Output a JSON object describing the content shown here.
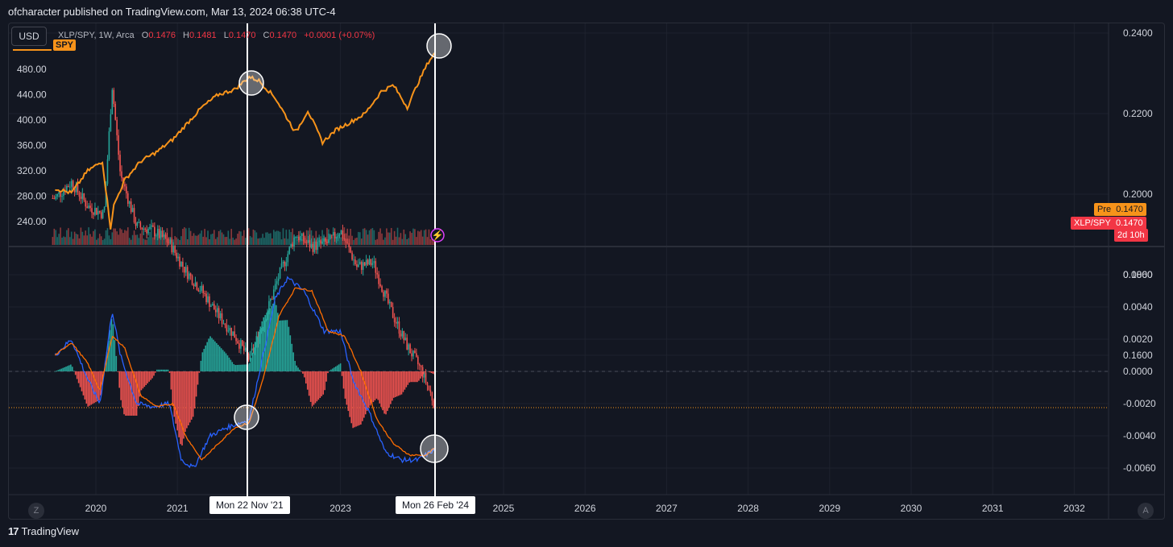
{
  "header": {
    "published": "ofcharacter published on TradingView.com, Mar 13, 2024 06:38 UTC-4"
  },
  "toolbar": {
    "currency": "USD"
  },
  "legend": {
    "symbol": "XLP/SPY, 1W, Arca",
    "o_label": "O",
    "o": "0.1476",
    "h_label": "H",
    "h": "0.1481",
    "l_label": "L",
    "l": "0.1470",
    "c_label": "C",
    "c": "0.1470",
    "change": "+0.0001 (+0.07%)",
    "overlay": "SPY"
  },
  "tags": {
    "pre_label": "Pre",
    "pre_value": "0.1470",
    "sym_label": "XLP/SPY",
    "sym_value": "0.1470",
    "countdown": "2d 10h"
  },
  "crosshair_dates": [
    "Mon 22 Nov '21",
    "Mon 26 Feb '24"
  ],
  "footer": {
    "brand": "TradingView",
    "logo": "17"
  },
  "buttons": {
    "z": "Z",
    "a": "A"
  },
  "colors": {
    "spy": "#f7931a",
    "up": "#26a69a",
    "down": "#ef5350",
    "macd": "#2962ff",
    "signal": "#ff6d00",
    "bg": "#131722"
  },
  "chart_data": [
    {
      "type": "line",
      "title": "XLP/SPY, 1W, Arca",
      "right_axis_ticks": [
        "0.2400",
        "0.2200",
        "0.2000",
        "0.1800",
        "0.1600"
      ],
      "left_axis_ticks": [
        "480.00",
        "440.00",
        "400.00",
        "360.00",
        "320.00",
        "280.00",
        "240.00"
      ],
      "x_ticks": [
        "2020",
        "2021",
        "2023",
        "2025",
        "2026",
        "2027",
        "2028",
        "2029",
        "2030",
        "2031",
        "2032"
      ],
      "series": [
        {
          "name": "SPY",
          "x": [
            2019.5,
            2019.7,
            2019.9,
            2020.08,
            2020.18,
            2020.22,
            2020.35,
            2020.55,
            2020.75,
            2020.95,
            2021.1,
            2021.3,
            2021.5,
            2021.7,
            2021.88,
            2022.0,
            2022.2,
            2022.45,
            2022.6,
            2022.78,
            2022.95,
            2023.1,
            2023.3,
            2023.5,
            2023.65,
            2023.82,
            2023.95,
            2024.08,
            2024.17
          ],
          "values": [
            292,
            285,
            320,
            335,
            230,
            265,
            305,
            335,
            350,
            370,
            392,
            420,
            440,
            448,
            468,
            462,
            435,
            380,
            415,
            365,
            385,
            395,
            410,
            445,
            455,
            420,
            458,
            492,
            508
          ]
        },
        {
          "name": "XLP/SPY",
          "x": [
            2019.5,
            2019.7,
            2019.9,
            2020.1,
            2020.2,
            2020.3,
            2020.5,
            2020.7,
            2020.9,
            2021.1,
            2021.3,
            2021.5,
            2021.7,
            2021.88,
            2022.05,
            2022.25,
            2022.45,
            2022.65,
            2022.85,
            2023.0,
            2023.2,
            2023.4,
            2023.6,
            2023.8,
            2024.0,
            2024.17
          ],
          "values": [
            0.199,
            0.203,
            0.197,
            0.195,
            0.227,
            0.205,
            0.192,
            0.191,
            0.188,
            0.181,
            0.176,
            0.17,
            0.165,
            0.159,
            0.168,
            0.18,
            0.19,
            0.187,
            0.188,
            0.191,
            0.182,
            0.183,
            0.172,
            0.163,
            0.156,
            0.147
          ]
        }
      ]
    },
    {
      "type": "line",
      "title": "MACD",
      "right_axis_ticks": [
        "0.0060",
        "0.0040",
        "0.0020",
        "0.0000",
        "-0.0020",
        "-0.0040",
        "-0.0060"
      ],
      "ylim": [
        -0.0066,
        0.006
      ],
      "series": [
        {
          "name": "MACD",
          "x": [
            2019.5,
            2019.7,
            2019.9,
            2020.05,
            2020.2,
            2020.3,
            2020.5,
            2020.7,
            2020.9,
            2021.05,
            2021.2,
            2021.4,
            2021.6,
            2021.88,
            2022.05,
            2022.2,
            2022.35,
            2022.55,
            2022.8,
            2023.0,
            2023.15,
            2023.35,
            2023.55,
            2023.75,
            2023.95,
            2024.17
          ],
          "values": [
            0.001,
            0.002,
            -0.0005,
            -0.002,
            0.0038,
            0.001,
            -0.002,
            -0.0022,
            -0.002,
            -0.0055,
            -0.006,
            -0.004,
            -0.0035,
            -0.003,
            0.001,
            0.0045,
            0.0058,
            0.005,
            0.0025,
            0.0025,
            -0.0005,
            -0.0025,
            -0.005,
            -0.0055,
            -0.0055,
            -0.0048
          ]
        },
        {
          "name": "Signal",
          "x": [
            2019.5,
            2019.7,
            2019.9,
            2020.05,
            2020.2,
            2020.35,
            2020.55,
            2020.75,
            2020.95,
            2021.1,
            2021.3,
            2021.5,
            2021.7,
            2021.88,
            2022.05,
            2022.25,
            2022.45,
            2022.65,
            2022.85,
            2023.05,
            2023.25,
            2023.45,
            2023.65,
            2023.85,
            2024.05,
            2024.17
          ],
          "values": [
            0.001,
            0.0018,
            0.0005,
            -0.0012,
            0.0022,
            0.0015,
            -0.0015,
            -0.0022,
            -0.002,
            -0.004,
            -0.0055,
            -0.0045,
            -0.0035,
            -0.0032,
            -0.0005,
            0.0035,
            0.0052,
            0.005,
            0.0025,
            0.0022,
            0.0,
            -0.003,
            -0.0045,
            -0.0052,
            -0.0052,
            -0.0047
          ]
        }
      ]
    }
  ]
}
